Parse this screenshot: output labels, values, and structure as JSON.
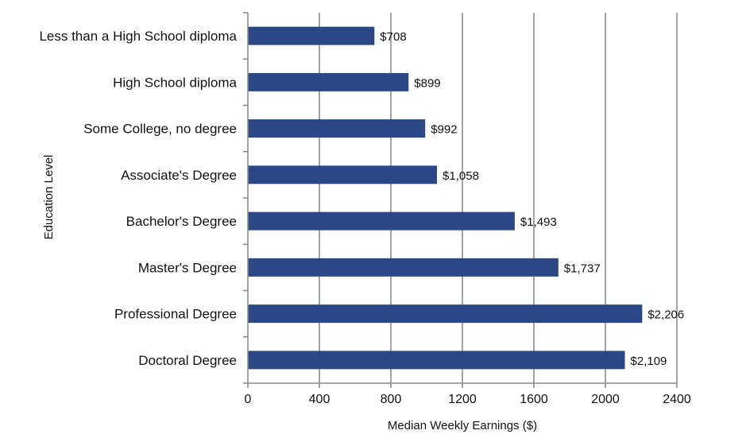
{
  "chart_data": {
    "type": "bar",
    "orientation": "horizontal",
    "title": "",
    "xlabel": "Median Weekly Earnings ($)",
    "ylabel": "Education Level",
    "xlim": [
      0,
      2400
    ],
    "x_ticks": [
      0,
      400,
      800,
      1200,
      1600,
      2000,
      2400
    ],
    "x_tick_labels": [
      "0",
      "400",
      "800",
      "1200",
      "1600",
      "2000",
      "2400"
    ],
    "grid": "vertical",
    "legend": "none",
    "categories": [
      "Less than a High School diploma",
      "High School diploma",
      "Some College, no degree",
      "Associate's Degree",
      "Bachelor's Degree",
      "Master's Degree",
      "Professional Degree",
      "Doctoral Degree"
    ],
    "values": [
      708,
      899,
      992,
      1058,
      1493,
      1737,
      2206,
      2109
    ],
    "data_labels": [
      "$708",
      "$899",
      "$992",
      "$1,058",
      "$1,493",
      "$1,737",
      "$2,206",
      "$2,109"
    ],
    "colors": {
      "bar": "#2C4785",
      "grid": "#8C8C8C",
      "axis": "#8C8C8C",
      "text": "#111111"
    }
  }
}
